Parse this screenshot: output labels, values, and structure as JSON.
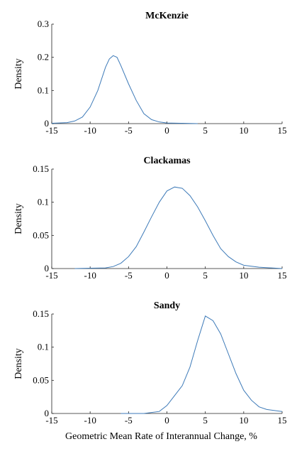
{
  "chart_data": [
    {
      "type": "line",
      "title": "McKenzie",
      "ylabel": "Density",
      "color": "#3d7ab8",
      "x": [
        -15,
        -13,
        -12,
        -11,
        -10,
        -9,
        -8,
        -7.5,
        -7,
        -6.5,
        -6,
        -5,
        -4,
        -3,
        -2,
        -1,
        0,
        2,
        4
      ],
      "values": [
        0.001,
        0.003,
        0.008,
        0.02,
        0.05,
        0.1,
        0.17,
        0.195,
        0.205,
        0.2,
        0.175,
        0.12,
        0.07,
        0.03,
        0.012,
        0.005,
        0.002,
        0.001,
        0
      ],
      "xlim": [
        -15,
        15
      ],
      "xticks": [
        -15,
        -10,
        -5,
        0,
        5,
        10,
        15
      ],
      "ylim": [
        0,
        0.3
      ],
      "yticks": [
        0,
        0.1,
        0.2,
        0.3
      ]
    },
    {
      "type": "line",
      "title": "Clackamas",
      "ylabel": "Density",
      "color": "#3d7ab8",
      "x": [
        -12,
        -8,
        -7,
        -6,
        -5,
        -4,
        -3,
        -2,
        -1,
        0,
        1,
        2,
        3,
        4,
        5,
        6,
        7,
        8,
        9,
        10,
        12,
        15
      ],
      "values": [
        0,
        0.001,
        0.003,
        0.008,
        0.018,
        0.033,
        0.055,
        0.078,
        0.1,
        0.117,
        0.123,
        0.121,
        0.11,
        0.093,
        0.072,
        0.05,
        0.03,
        0.018,
        0.01,
        0.005,
        0.002,
        0
      ],
      "xlim": [
        -15,
        15
      ],
      "xticks": [
        -15,
        -10,
        -5,
        0,
        5,
        10,
        15
      ],
      "ylim": [
        0,
        0.15
      ],
      "yticks": [
        0,
        0.05,
        0.1,
        0.15
      ]
    },
    {
      "type": "line",
      "title": "Sandy",
      "ylabel": "Density",
      "xlabel": "Geometric Mean Rate of Interannual Change, %",
      "color": "#3d7ab8",
      "x": [
        -6,
        -3,
        -1,
        0,
        1,
        2,
        3,
        4,
        5,
        6,
        7,
        8,
        9,
        10,
        11,
        12,
        13,
        15
      ],
      "values": [
        0,
        0,
        0.003,
        0.012,
        0.027,
        0.042,
        0.07,
        0.11,
        0.147,
        0.14,
        0.12,
        0.09,
        0.06,
        0.035,
        0.02,
        0.01,
        0.006,
        0.003
      ],
      "xlim": [
        -15,
        15
      ],
      "xticks": [
        -15,
        -10,
        -5,
        0,
        5,
        10,
        15
      ],
      "ylim": [
        0,
        0.15
      ],
      "yticks": [
        0,
        0.05,
        0.1,
        0.15
      ]
    }
  ]
}
